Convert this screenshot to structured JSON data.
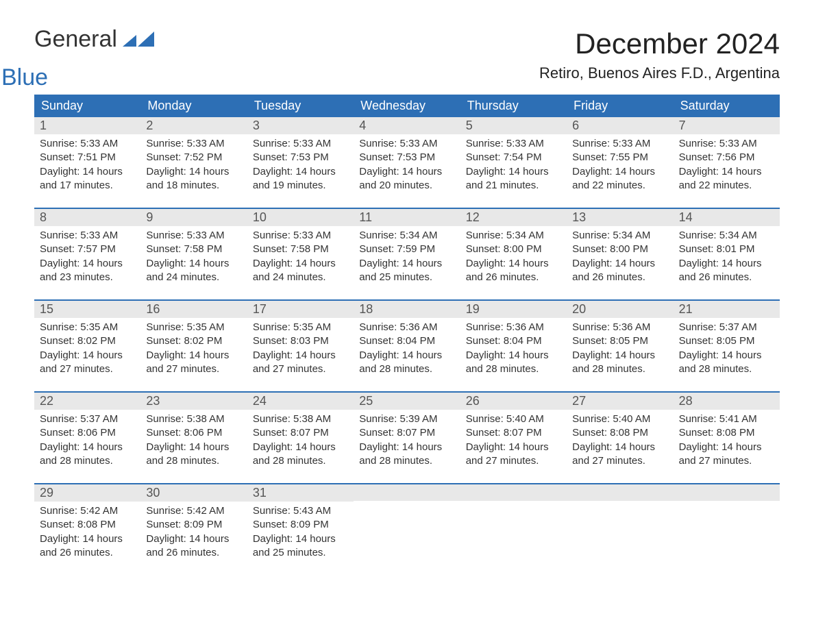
{
  "logo": {
    "word1": "General",
    "word2": "Blue"
  },
  "title": "December 2024",
  "location": "Retiro, Buenos Aires F.D., Argentina",
  "colors": {
    "header": "#2d6fb5",
    "date_bg": "#e8e8e8",
    "text": "#333333",
    "logo_dark": "#333333",
    "logo_blue": "#2d6fb5",
    "background": "#ffffff"
  },
  "dow": [
    "Sunday",
    "Monday",
    "Tuesday",
    "Wednesday",
    "Thursday",
    "Friday",
    "Saturday"
  ],
  "weeks": [
    [
      {
        "date": "1",
        "sunrise": "5:33 AM",
        "sunset": "7:51 PM",
        "daylight": "14 hours and 17 minutes."
      },
      {
        "date": "2",
        "sunrise": "5:33 AM",
        "sunset": "7:52 PM",
        "daylight": "14 hours and 18 minutes."
      },
      {
        "date": "3",
        "sunrise": "5:33 AM",
        "sunset": "7:53 PM",
        "daylight": "14 hours and 19 minutes."
      },
      {
        "date": "4",
        "sunrise": "5:33 AM",
        "sunset": "7:53 PM",
        "daylight": "14 hours and 20 minutes."
      },
      {
        "date": "5",
        "sunrise": "5:33 AM",
        "sunset": "7:54 PM",
        "daylight": "14 hours and 21 minutes."
      },
      {
        "date": "6",
        "sunrise": "5:33 AM",
        "sunset": "7:55 PM",
        "daylight": "14 hours and 22 minutes."
      },
      {
        "date": "7",
        "sunrise": "5:33 AM",
        "sunset": "7:56 PM",
        "daylight": "14 hours and 22 minutes."
      }
    ],
    [
      {
        "date": "8",
        "sunrise": "5:33 AM",
        "sunset": "7:57 PM",
        "daylight": "14 hours and 23 minutes."
      },
      {
        "date": "9",
        "sunrise": "5:33 AM",
        "sunset": "7:58 PM",
        "daylight": "14 hours and 24 minutes."
      },
      {
        "date": "10",
        "sunrise": "5:33 AM",
        "sunset": "7:58 PM",
        "daylight": "14 hours and 24 minutes."
      },
      {
        "date": "11",
        "sunrise": "5:34 AM",
        "sunset": "7:59 PM",
        "daylight": "14 hours and 25 minutes."
      },
      {
        "date": "12",
        "sunrise": "5:34 AM",
        "sunset": "8:00 PM",
        "daylight": "14 hours and 26 minutes."
      },
      {
        "date": "13",
        "sunrise": "5:34 AM",
        "sunset": "8:00 PM",
        "daylight": "14 hours and 26 minutes."
      },
      {
        "date": "14",
        "sunrise": "5:34 AM",
        "sunset": "8:01 PM",
        "daylight": "14 hours and 26 minutes."
      }
    ],
    [
      {
        "date": "15",
        "sunrise": "5:35 AM",
        "sunset": "8:02 PM",
        "daylight": "14 hours and 27 minutes."
      },
      {
        "date": "16",
        "sunrise": "5:35 AM",
        "sunset": "8:02 PM",
        "daylight": "14 hours and 27 minutes."
      },
      {
        "date": "17",
        "sunrise": "5:35 AM",
        "sunset": "8:03 PM",
        "daylight": "14 hours and 27 minutes."
      },
      {
        "date": "18",
        "sunrise": "5:36 AM",
        "sunset": "8:04 PM",
        "daylight": "14 hours and 28 minutes."
      },
      {
        "date": "19",
        "sunrise": "5:36 AM",
        "sunset": "8:04 PM",
        "daylight": "14 hours and 28 minutes."
      },
      {
        "date": "20",
        "sunrise": "5:36 AM",
        "sunset": "8:05 PM",
        "daylight": "14 hours and 28 minutes."
      },
      {
        "date": "21",
        "sunrise": "5:37 AM",
        "sunset": "8:05 PM",
        "daylight": "14 hours and 28 minutes."
      }
    ],
    [
      {
        "date": "22",
        "sunrise": "5:37 AM",
        "sunset": "8:06 PM",
        "daylight": "14 hours and 28 minutes."
      },
      {
        "date": "23",
        "sunrise": "5:38 AM",
        "sunset": "8:06 PM",
        "daylight": "14 hours and 28 minutes."
      },
      {
        "date": "24",
        "sunrise": "5:38 AM",
        "sunset": "8:07 PM",
        "daylight": "14 hours and 28 minutes."
      },
      {
        "date": "25",
        "sunrise": "5:39 AM",
        "sunset": "8:07 PM",
        "daylight": "14 hours and 28 minutes."
      },
      {
        "date": "26",
        "sunrise": "5:40 AM",
        "sunset": "8:07 PM",
        "daylight": "14 hours and 27 minutes."
      },
      {
        "date": "27",
        "sunrise": "5:40 AM",
        "sunset": "8:08 PM",
        "daylight": "14 hours and 27 minutes."
      },
      {
        "date": "28",
        "sunrise": "5:41 AM",
        "sunset": "8:08 PM",
        "daylight": "14 hours and 27 minutes."
      }
    ],
    [
      {
        "date": "29",
        "sunrise": "5:42 AM",
        "sunset": "8:08 PM",
        "daylight": "14 hours and 26 minutes."
      },
      {
        "date": "30",
        "sunrise": "5:42 AM",
        "sunset": "8:09 PM",
        "daylight": "14 hours and 26 minutes."
      },
      {
        "date": "31",
        "sunrise": "5:43 AM",
        "sunset": "8:09 PM",
        "daylight": "14 hours and 25 minutes."
      },
      null,
      null,
      null,
      null
    ]
  ],
  "labels": {
    "sunrise": "Sunrise: ",
    "sunset": "Sunset: ",
    "daylight": "Daylight: "
  }
}
